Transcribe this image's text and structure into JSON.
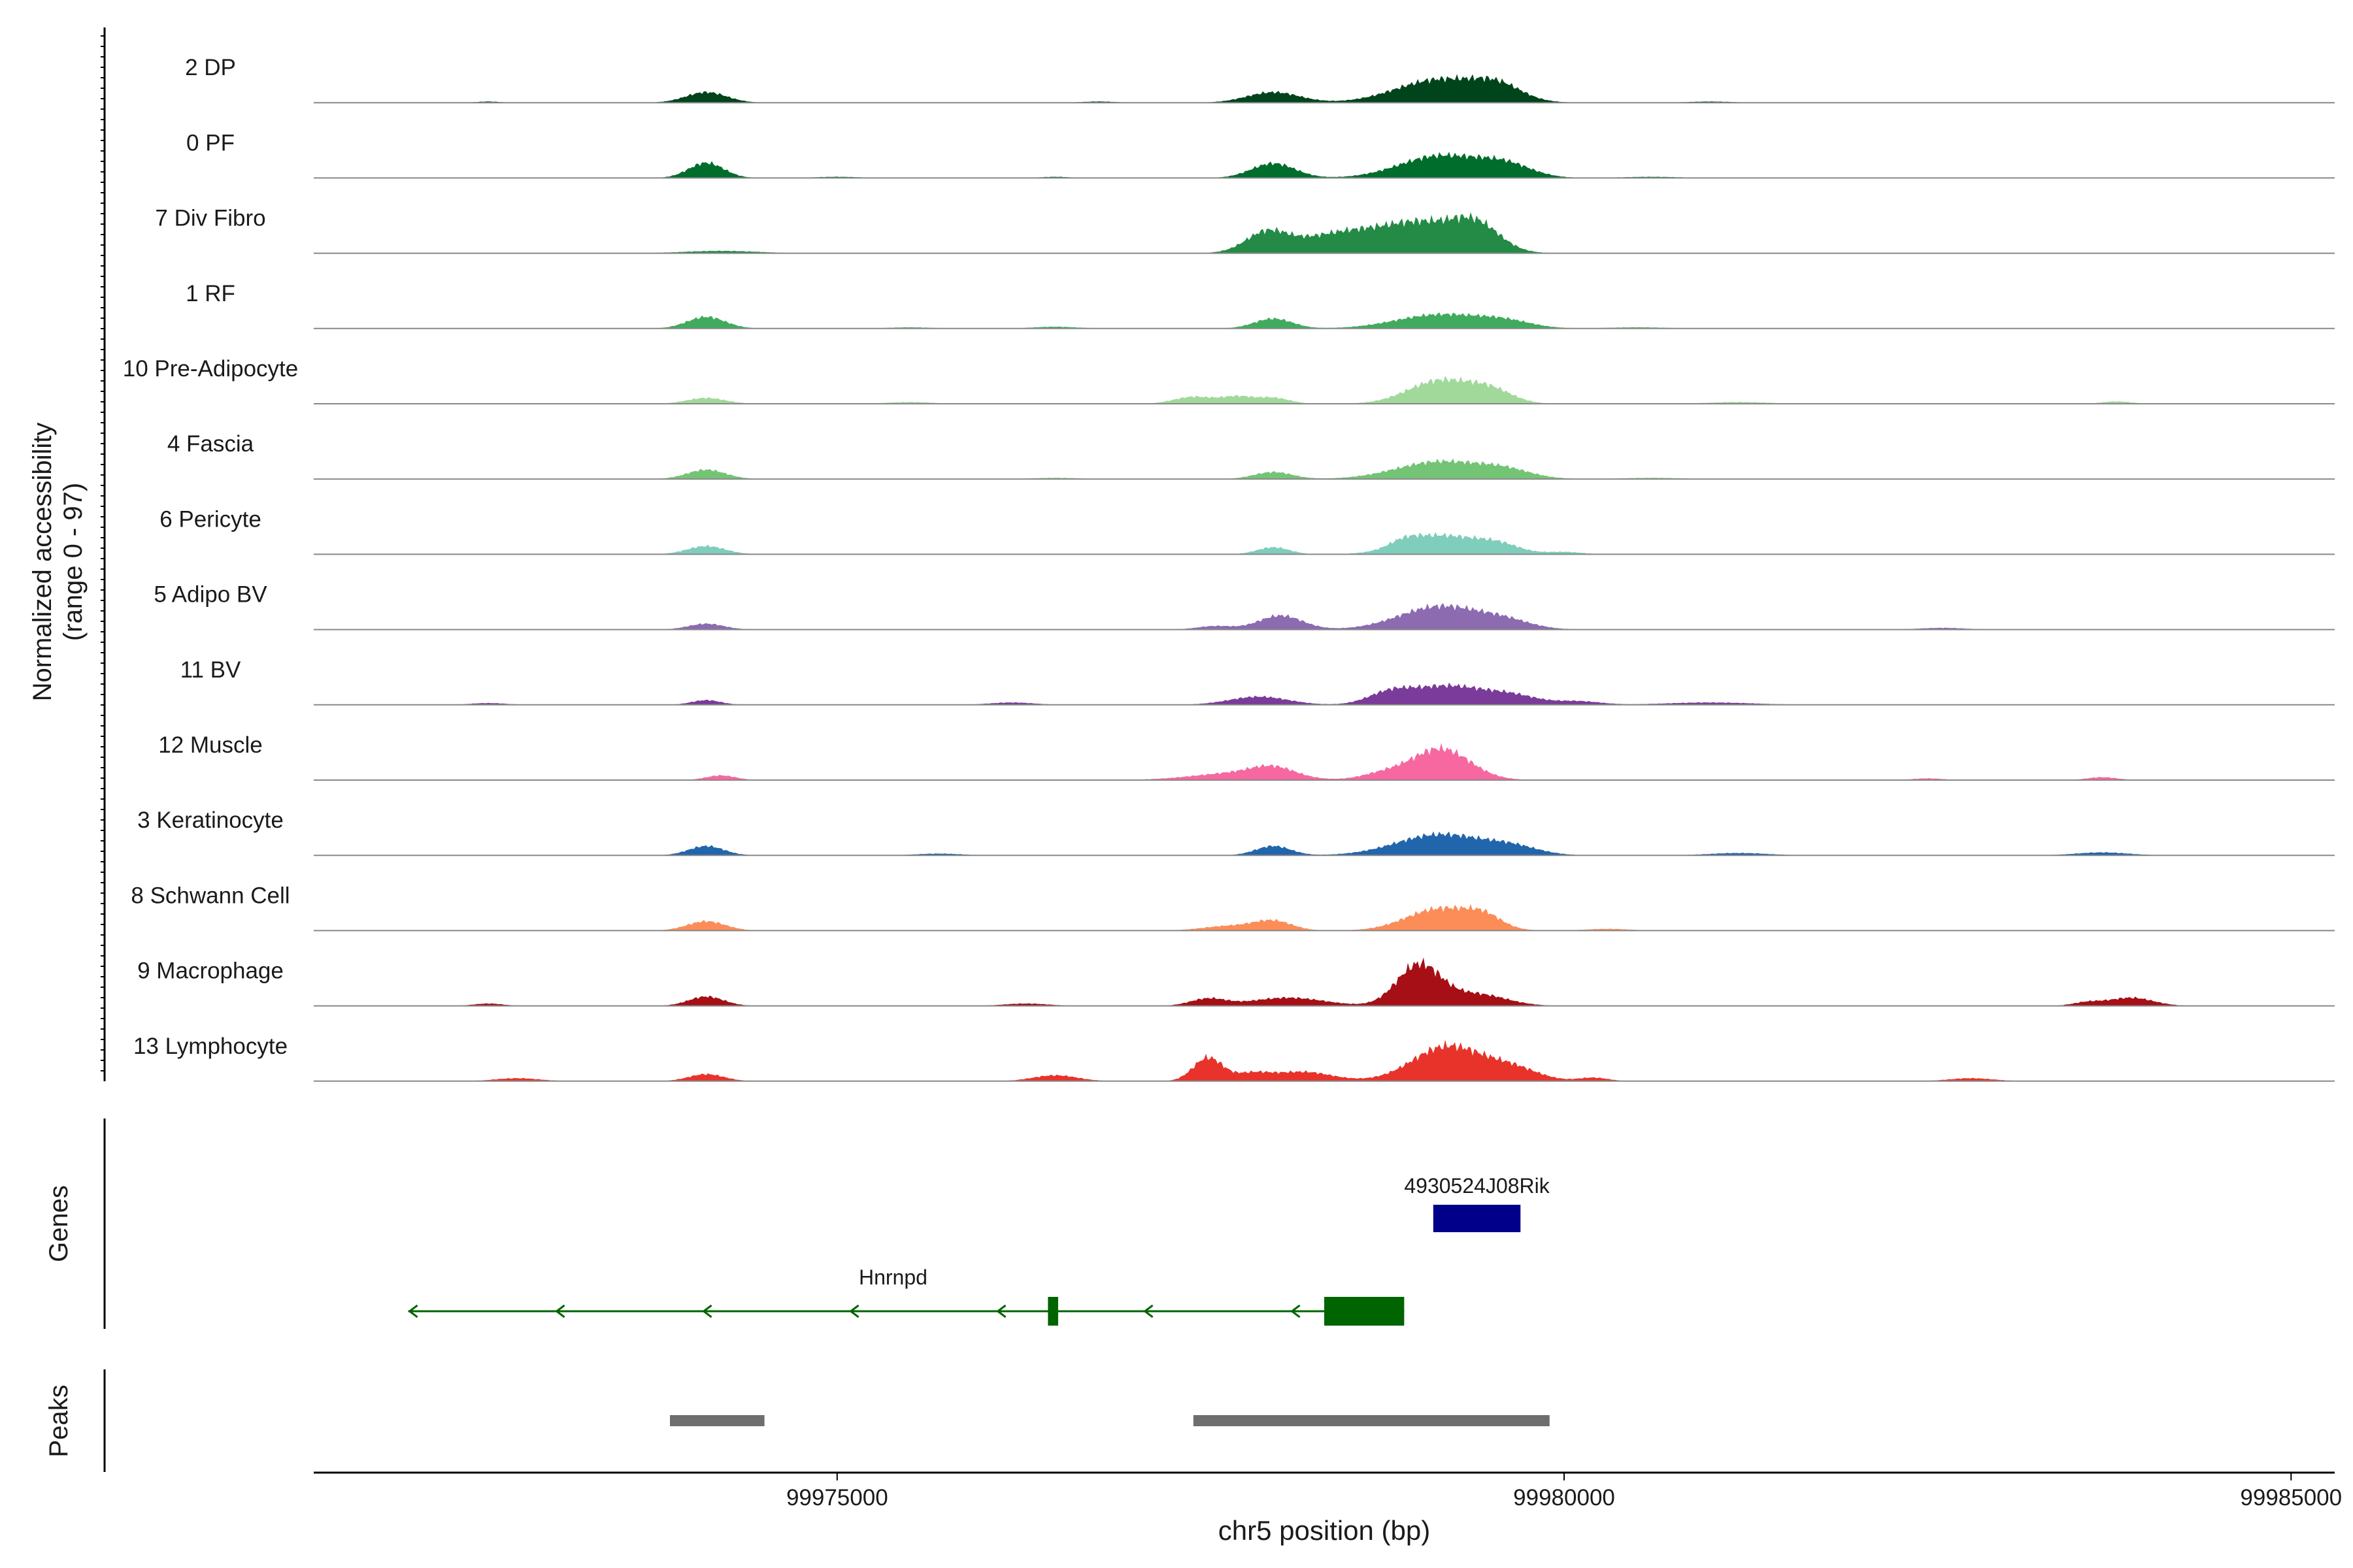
{
  "chart_data": {
    "type": "area",
    "title": "",
    "xlabel": "chr5 position (bp)",
    "xlim": [
      99971400,
      99985300
    ],
    "x_ticks": [
      99975000,
      99980000,
      99985000
    ],
    "x_tick_labels": [
      "99975000",
      "99980000",
      "99985000"
    ],
    "ylabel_line1": "Normalized accessibility",
    "ylabel_line2": "(range 0 - 97)",
    "ylim": [
      0,
      97
    ],
    "grid": false,
    "track_order": [
      "2 DP",
      "0 PF",
      "7 Div Fibro",
      "1 RF",
      "10 Pre-Adipocyte",
      "4 Fascia",
      "6 Pericyte",
      "5 Adipo BV",
      "11 BV",
      "12 Muscle",
      "3 Keratinocyte",
      "8 Schwann Cell",
      "9 Macrophage",
      "13 Lymphocyte"
    ],
    "series": [
      {
        "name": "2 DP",
        "color": "#00441b",
        "peaks": [
          [
            99974100,
            18,
            140
          ],
          [
            99978000,
            18,
            180
          ],
          [
            99979150,
            40,
            300
          ],
          [
            99979550,
            22,
            160
          ],
          [
            99972600,
            2,
            80
          ],
          [
            99976800,
            2,
            120
          ],
          [
            99981000,
            2,
            150
          ]
        ]
      },
      {
        "name": "0 PF",
        "color": "#006d2c",
        "peaks": [
          [
            99974100,
            26,
            120
          ],
          [
            99978000,
            25,
            150
          ],
          [
            99979150,
            38,
            280
          ],
          [
            99979600,
            20,
            180
          ],
          [
            99975000,
            2,
            150
          ],
          [
            99976500,
            2,
            100
          ],
          [
            99980600,
            2,
            200
          ]
        ]
      },
      {
        "name": "7 Div Fibro",
        "color": "#238b45",
        "peaks": [
          [
            99977950,
            30,
            140
          ],
          [
            99978500,
            22,
            220
          ],
          [
            99979000,
            52,
            280
          ],
          [
            99979400,
            40,
            160
          ],
          [
            99974200,
            4,
            250
          ],
          [
            99978200,
            14,
            250
          ]
        ]
      },
      {
        "name": "1 RF",
        "color": "#41ab5d",
        "peaks": [
          [
            99974100,
            20,
            130
          ],
          [
            99978000,
            17,
            130
          ],
          [
            99979150,
            24,
            300
          ],
          [
            99979600,
            10,
            180
          ],
          [
            99975500,
            2,
            150
          ],
          [
            99976500,
            3,
            150
          ],
          [
            99980500,
            2,
            200
          ]
        ]
      },
      {
        "name": "10 Pre-Adipocyte",
        "color": "#a1d99b",
        "peaks": [
          [
            99974100,
            10,
            130
          ],
          [
            99977450,
            12,
            130
          ],
          [
            99977750,
            12,
            110
          ],
          [
            99978000,
            10,
            110
          ],
          [
            99979150,
            40,
            220
          ],
          [
            99979500,
            20,
            150
          ],
          [
            99983800,
            4,
            100
          ],
          [
            99975500,
            3,
            150
          ],
          [
            99981200,
            3,
            200
          ]
        ]
      },
      {
        "name": "4 Fascia",
        "color": "#74c476",
        "peaks": [
          [
            99974100,
            16,
            130
          ],
          [
            99978000,
            12,
            130
          ],
          [
            99979150,
            30,
            300
          ],
          [
            99979600,
            12,
            180
          ],
          [
            99976500,
            2,
            150
          ],
          [
            99980600,
            2,
            200
          ]
        ]
      },
      {
        "name": "6 Pericyte",
        "color": "#7fcdbb",
        "peaks": [
          [
            99974100,
            14,
            130
          ],
          [
            99978000,
            12,
            110
          ],
          [
            99979150,
            32,
            250
          ],
          [
            99979550,
            14,
            150
          ],
          [
            99978900,
            10,
            100
          ],
          [
            99980000,
            4,
            120
          ]
        ]
      },
      {
        "name": "5 Adipo BV",
        "color": "#8c6bb1",
        "peaks": [
          [
            99974100,
            10,
            120
          ],
          [
            99978050,
            24,
            150
          ],
          [
            99979150,
            40,
            280
          ],
          [
            99979600,
            12,
            180
          ],
          [
            99977600,
            6,
            120
          ],
          [
            99982600,
            3,
            150
          ]
        ]
      },
      {
        "name": "11 BV",
        "color": "#7a3b9a",
        "peaks": [
          [
            99974100,
            8,
            100
          ],
          [
            99977900,
            14,
            200
          ],
          [
            99978800,
            18,
            150
          ],
          [
            99979200,
            32,
            250
          ],
          [
            99979650,
            14,
            180
          ],
          [
            99980100,
            6,
            150
          ],
          [
            99981000,
            4,
            300
          ],
          [
            99976200,
            4,
            150
          ],
          [
            99972600,
            3,
            120
          ]
        ]
      },
      {
        "name": "12 Muscle",
        "color": "#f768a1",
        "peaks": [
          [
            99974200,
            8,
            100
          ],
          [
            99977750,
            12,
            300
          ],
          [
            99978000,
            16,
            150
          ],
          [
            99979150,
            54,
            200
          ],
          [
            99978750,
            10,
            150
          ],
          [
            99983700,
            5,
            100
          ],
          [
            99982500,
            3,
            100
          ]
        ]
      },
      {
        "name": "3 Keratinocyte",
        "color": "#2166ac",
        "peaks": [
          [
            99974100,
            16,
            120
          ],
          [
            99978000,
            16,
            120
          ],
          [
            99979150,
            36,
            300
          ],
          [
            99979650,
            12,
            180
          ],
          [
            99975700,
            3,
            150
          ],
          [
            99981200,
            4,
            200
          ],
          [
            99983700,
            5,
            180
          ]
        ]
      },
      {
        "name": "8 Schwann Cell",
        "color": "#fc8d59",
        "peaks": [
          [
            99974100,
            16,
            130
          ],
          [
            99977700,
            8,
            180
          ],
          [
            99978000,
            16,
            130
          ],
          [
            99979150,
            38,
            230
          ],
          [
            99979450,
            18,
            120
          ],
          [
            99980300,
            3,
            150
          ]
        ]
      },
      {
        "name": "9 Macrophage",
        "color": "#a50f15",
        "peaks": [
          [
            99974100,
            16,
            120
          ],
          [
            99977550,
            12,
            120
          ],
          [
            99978100,
            14,
            250
          ],
          [
            99979000,
            70,
            150
          ],
          [
            99979400,
            20,
            200
          ],
          [
            99983900,
            14,
            150
          ],
          [
            99983600,
            6,
            100
          ],
          [
            99972600,
            4,
            100
          ],
          [
            99976300,
            4,
            150
          ]
        ]
      },
      {
        "name": "13 Lymphocyte",
        "color": "#e8332b",
        "peaks": [
          [
            99977550,
            40,
            100
          ],
          [
            99977850,
            12,
            120
          ],
          [
            99978200,
            16,
            200
          ],
          [
            99979200,
            60,
            240
          ],
          [
            99979650,
            20,
            180
          ],
          [
            99974100,
            12,
            120
          ],
          [
            99976500,
            10,
            150
          ],
          [
            99980200,
            6,
            100
          ],
          [
            99982800,
            5,
            150
          ],
          [
            99972800,
            5,
            150
          ]
        ]
      }
    ]
  },
  "genes_track": {
    "label": "Genes",
    "genes": [
      {
        "name": "4930524J08Rik",
        "color": "#00008b",
        "start": 99979100,
        "end": 99979700
      },
      {
        "name": "Hnrnpd",
        "color": "#006400",
        "start": 99972050,
        "end": 99978900,
        "strand": "-",
        "exons": [
          [
            99976450,
            99976520
          ],
          [
            99978350,
            99978900
          ]
        ]
      }
    ]
  },
  "peaks_track": {
    "label": "Peaks",
    "color": "#6e6e6e",
    "peaks": [
      [
        99973850,
        99974500
      ],
      [
        99977450,
        99979900
      ]
    ]
  }
}
